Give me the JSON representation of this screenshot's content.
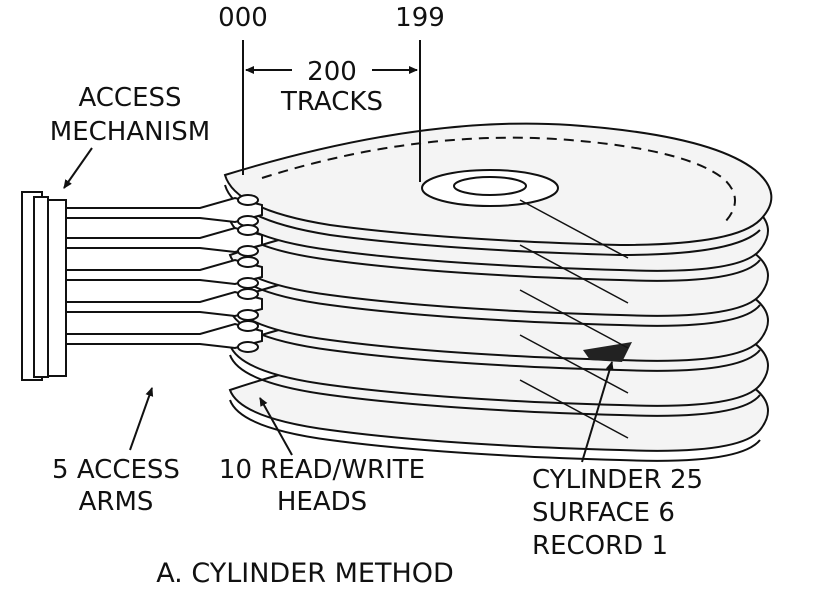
{
  "figure": {
    "caption": "A. CYLINDER METHOD",
    "colors": {
      "ink": "#111111",
      "paper": "#ffffff",
      "platter_shade": "#f4f4f4",
      "highlight": "#222222"
    }
  },
  "labels": {
    "track_start": "000",
    "track_end": "199",
    "tracks_count": "200",
    "tracks_word": "TRACKS",
    "access_mechanism_line1": "ACCESS",
    "access_mechanism_line2": "MECHANISM",
    "access_arms_line1": "5 ACCESS",
    "access_arms_line2": "ARMS",
    "heads_line1": "10 READ/WRITE",
    "heads_line2": "HEADS",
    "cylinder_line1": "CYLINDER 25",
    "cylinder_line2": "SURFACE 6",
    "cylinder_line3": "RECORD 1"
  }
}
